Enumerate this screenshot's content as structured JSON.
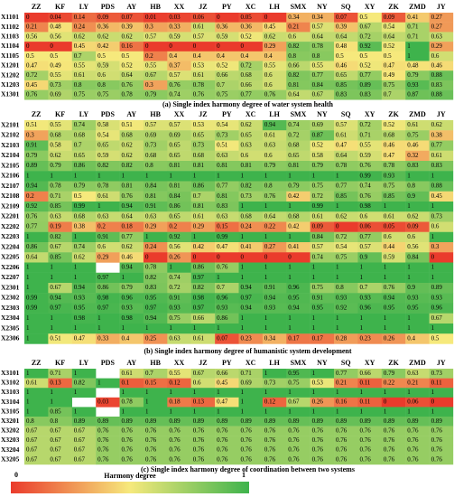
{
  "chart_data": [
    {
      "type": "heatmap",
      "title": "(a) Single index harmony degree of water system health",
      "categories": [
        "ZZ",
        "KF",
        "LY",
        "PDS",
        "AY",
        "HB",
        "XX",
        "JZ",
        "PY",
        "XC",
        "LH",
        "SMX",
        "NY",
        "SQ",
        "XY",
        "ZK",
        "ZMD",
        "JY"
      ],
      "rows": [
        "X1101",
        "X1102",
        "X1103",
        "X1104",
        "X1105",
        "X1201",
        "X1202",
        "X1203",
        "X1301"
      ],
      "values": [
        [
          0,
          0.04,
          0.14,
          0.09,
          0.07,
          0.01,
          0.03,
          0.06,
          0,
          0.05,
          0,
          0.34,
          0.34,
          0.07,
          0.5,
          0.09,
          0.41,
          0.27
        ],
        [
          0.21,
          0.48,
          0.24,
          0.36,
          0.39,
          0.3,
          0.33,
          0.61,
          0.36,
          0.36,
          0.45,
          0.21,
          0.57,
          0.39,
          0.67,
          0.54,
          0.71,
          0.27
        ],
        [
          0.56,
          0.56,
          0.62,
          0.62,
          0.62,
          0.57,
          0.59,
          0.57,
          0.59,
          0.52,
          0.62,
          0.6,
          0.64,
          0.64,
          0.72,
          0.64,
          0.71,
          0.63
        ],
        [
          0,
          0,
          0.45,
          0.42,
          0.16,
          0,
          0,
          0,
          0,
          0,
          0.29,
          0.82,
          0.78,
          0.48,
          0.92,
          0.52,
          1,
          0.29
        ],
        [
          0.5,
          0.5,
          0.7,
          0.5,
          0.5,
          0.2,
          0.4,
          0.4,
          0.4,
          0.4,
          0.4,
          0.8,
          0.8,
          0.5,
          0.5,
          0.5,
          1,
          0.6
        ],
        [
          0.47,
          0.49,
          0.55,
          0.59,
          0.52,
          0.55,
          0.37,
          0.53,
          0.52,
          0.72,
          0.55,
          0.66,
          0.55,
          0.46,
          0.52,
          0.47,
          0.48,
          0.46
        ],
        [
          0.72,
          0.55,
          0.61,
          0.6,
          0.64,
          0.67,
          0.57,
          0.61,
          0.66,
          0.68,
          0.6,
          0.82,
          0.77,
          0.65,
          0.77,
          0.49,
          0.79,
          0.88
        ],
        [
          0.45,
          0.73,
          0.8,
          0.8,
          0.76,
          0.3,
          0.76,
          0.78,
          0.7,
          0.66,
          0.6,
          0.81,
          0.84,
          0.85,
          0.89,
          0.75,
          0.93,
          0.83
        ],
        [
          0.76,
          0.69,
          0.75,
          0.75,
          0.78,
          0.79,
          0.74,
          0.76,
          0.75,
          0.77,
          0.76,
          0.64,
          0.67,
          0.83,
          0.83,
          0.7,
          0.87,
          0.88
        ]
      ]
    },
    {
      "type": "heatmap",
      "title": "(b) Single index harmony degree of humanistic system development",
      "categories": [
        "ZZ",
        "KF",
        "LY",
        "PDS",
        "AY",
        "HB",
        "XX",
        "JZ",
        "PY",
        "XC",
        "LH",
        "SMX",
        "NY",
        "SQ",
        "XY",
        "ZK",
        "ZMD",
        "JY"
      ],
      "rows": [
        "X2101",
        "X2102",
        "X2103",
        "X2104",
        "X2105",
        "X2106",
        "X2107",
        "X2108",
        "X2109",
        "X2201",
        "X2202",
        "X2203",
        "X2204",
        "X2205",
        "X2206",
        "X2207",
        "X2301",
        "X2302",
        "X2303",
        "X2304",
        "X2305",
        "X2306"
      ],
      "values": [
        [
          0.51,
          0.55,
          0.74,
          0.58,
          0.51,
          0.57,
          0.57,
          0.53,
          0.54,
          0.62,
          0.94,
          0.74,
          0.69,
          0.57,
          0.72,
          0.52,
          0.61,
          0.62
        ],
        [
          0.3,
          0.68,
          0.68,
          0.54,
          0.68,
          0.69,
          0.69,
          0.65,
          0.73,
          0.65,
          0.61,
          0.72,
          0.87,
          0.61,
          0.71,
          0.68,
          0.75,
          0.38
        ],
        [
          0.91,
          0.58,
          0.7,
          0.65,
          0.62,
          0.73,
          0.65,
          0.73,
          0.51,
          0.63,
          0.63,
          0.68,
          0.52,
          0.47,
          0.55,
          0.46,
          0.46,
          0.77
        ],
        [
          0.79,
          0.62,
          0.65,
          0.59,
          0.62,
          0.68,
          0.65,
          0.68,
          0.63,
          0.6,
          0.6,
          0.65,
          0.58,
          0.64,
          0.59,
          0.47,
          0.32,
          0.61
        ],
        [
          0.89,
          0.79,
          0.86,
          0.82,
          0.82,
          0.8,
          0.81,
          0.81,
          0.81,
          0.81,
          0.79,
          0.81,
          0.79,
          0.78,
          0.76,
          0.78,
          0.83,
          0.83
        ],
        [
          1,
          1,
          1,
          1,
          1,
          1,
          1,
          1,
          1,
          1,
          1,
          1,
          1,
          1,
          0.99,
          0.93,
          1,
          1
        ],
        [
          0.94,
          0.78,
          0.79,
          0.78,
          0.81,
          0.84,
          0.81,
          0.86,
          0.77,
          0.82,
          0.8,
          0.79,
          0.75,
          0.77,
          0.74,
          0.75,
          0.8,
          0.88
        ],
        [
          0.2,
          0.71,
          0.5,
          0.61,
          0.76,
          0.81,
          0.84,
          0.7,
          0.81,
          0.73,
          0.76,
          0.42,
          0.72,
          0.85,
          0.76,
          0.85,
          0.9,
          0.45
        ],
        [
          0.92,
          0.85,
          0.99,
          1,
          0.94,
          0.91,
          0.86,
          0.81,
          0.83,
          1,
          1,
          1,
          0.99,
          1,
          0.98,
          1,
          1,
          1
        ],
        [
          0.76,
          0.63,
          0.68,
          0.63,
          0.64,
          0.63,
          0.65,
          0.61,
          0.63,
          0.68,
          0.64,
          0.68,
          0.61,
          0.62,
          0.6,
          0.61,
          0.62,
          0.73
        ],
        [
          0.77,
          0.19,
          0.38,
          0.2,
          0.18,
          0.29,
          0.2,
          0.29,
          0.15,
          0.24,
          0.22,
          0.42,
          0.09,
          0,
          0.06,
          0.05,
          0.09,
          0.6
        ],
        [
          1,
          0.82,
          1,
          0.91,
          0.77,
          1,
          0.92,
          1,
          0.99,
          1,
          1,
          1,
          0.84,
          0.72,
          0.77,
          0.6,
          0.6,
          1
        ],
        [
          0.86,
          0.67,
          0.74,
          0.6,
          0.62,
          0.24,
          0.56,
          0.42,
          0.47,
          0.41,
          0.27,
          0.41,
          0.57,
          0.54,
          0.57,
          0.44,
          0.56,
          0.3
        ],
        [
          0.64,
          0.85,
          0.62,
          0.29,
          0.46,
          0,
          0.26,
          0,
          0,
          0,
          0,
          0,
          0.74,
          0.75,
          0.9,
          0.59,
          0.84,
          0
        ],
        [
          1,
          1,
          1,
          null,
          0.94,
          0.78,
          1,
          0.86,
          0.76,
          1,
          1,
          1,
          1,
          1,
          1,
          1,
          1,
          1
        ],
        [
          1,
          1,
          1,
          0.97,
          1,
          0.82,
          0.74,
          0.97,
          1,
          1,
          1,
          1,
          1,
          1,
          1,
          1,
          1,
          1
        ],
        [
          1,
          0.67,
          0.94,
          0.86,
          0.79,
          0.83,
          0.72,
          0.82,
          0.7,
          0.94,
          0.91,
          0.96,
          0.75,
          0.8,
          0.7,
          0.76,
          0.9,
          0.89
        ],
        [
          0.99,
          0.94,
          0.93,
          0.98,
          0.96,
          0.95,
          0.91,
          0.98,
          0.96,
          0.97,
          0.94,
          0.95,
          0.91,
          0.93,
          0.93,
          0.94,
          0.93,
          0.93
        ],
        [
          0.99,
          0.97,
          0.95,
          0.97,
          0.93,
          0.97,
          0.93,
          0.97,
          0.93,
          0.94,
          0.93,
          0.94,
          0.95,
          0.92,
          0.96,
          0.95,
          0.95,
          0.96
        ],
        [
          1,
          1,
          0.98,
          1,
          0.98,
          0.94,
          0.75,
          0.66,
          0.86,
          1,
          1,
          1,
          1,
          1,
          1,
          1,
          1,
          0.67
        ],
        [
          1,
          1,
          1,
          1,
          1,
          1,
          1,
          1,
          1,
          1,
          1,
          1,
          1,
          1,
          1,
          1,
          1,
          1
        ],
        [
          1,
          0.51,
          0.47,
          0.33,
          0.4,
          0.25,
          0.63,
          0.61,
          0.07,
          0.23,
          0.34,
          0.17,
          0.17,
          0.28,
          0.23,
          0.26,
          0.4,
          0.5
        ]
      ]
    },
    {
      "type": "heatmap",
      "title": "(c) Single index harmony degree of coordination between two systems",
      "categories": [
        "ZZ",
        "KF",
        "LY",
        "PDS",
        "AY",
        "HB",
        "XX",
        "JZ",
        "PY",
        "XC",
        "LH",
        "SMX",
        "NY",
        "SQ",
        "XY",
        "ZK",
        "ZMD",
        "JY"
      ],
      "rows": [
        "X3101",
        "X3102",
        "X3103",
        "X3104",
        "X3105",
        "X3201",
        "X3202",
        "X3203",
        "X3204",
        "X3205"
      ],
      "values": [
        [
          1,
          0.71,
          1,
          null,
          0.61,
          0.7,
          0.55,
          0.67,
          0.66,
          0.71,
          1,
          0.95,
          1,
          0.77,
          0.66,
          0.79,
          0.63,
          0.73
        ],
        [
          0.61,
          0.13,
          0.82,
          1,
          0.1,
          0.15,
          0.12,
          0.6,
          0.45,
          0.69,
          0.73,
          0.75,
          0.53,
          0.21,
          0.11,
          0.22,
          0.21,
          0.11
        ],
        [
          1,
          1,
          1,
          null,
          1,
          1,
          1,
          1,
          1,
          1,
          1,
          1,
          1,
          1,
          1,
          1,
          1,
          1
        ],
        [
          1,
          1,
          null,
          0.03,
          0.78,
          1,
          0.18,
          0.13,
          0.47,
          1,
          0.12,
          0.67,
          0.26,
          0.16,
          0.11,
          0,
          0.06,
          0
        ],
        [
          1,
          0.85,
          1,
          null,
          1,
          1,
          1,
          1,
          1,
          1,
          1,
          1,
          1,
          1,
          1,
          1,
          1,
          1
        ],
        [
          0.8,
          0.8,
          0.89,
          0.89,
          0.89,
          0.89,
          0.89,
          0.89,
          0.89,
          0.89,
          0.89,
          0.89,
          0.89,
          0.89,
          0.89,
          0.89,
          0.89,
          0.89
        ],
        [
          0.67,
          0.67,
          0.67,
          0.76,
          0.76,
          0.76,
          0.76,
          0.76,
          0.76,
          0.76,
          0.76,
          0.76,
          0.76,
          0.76,
          0.76,
          0.76,
          0.76,
          0.76
        ],
        [
          0.67,
          0.67,
          0.67,
          0.76,
          0.76,
          0.76,
          0.76,
          0.76,
          0.76,
          0.76,
          0.76,
          0.76,
          0.76,
          0.76,
          0.76,
          0.76,
          0.76,
          0.76
        ],
        [
          0.67,
          0.67,
          0.67,
          0.76,
          0.76,
          0.76,
          0.76,
          0.76,
          0.76,
          0.76,
          0.76,
          0.76,
          0.76,
          0.76,
          0.76,
          0.76,
          0.76,
          0.76
        ],
        [
          0.67,
          0.67,
          0.67,
          0.76,
          0.76,
          0.76,
          0.76,
          0.76,
          0.76,
          0.76,
          0.76,
          0.76,
          0.76,
          0.76,
          0.76,
          0.76,
          0.76,
          0.76
        ]
      ]
    }
  ],
  "colorbar": {
    "label": "Harmony degree",
    "ticks": [
      0,
      1
    ],
    "colors": [
      "#ea3b2c",
      "#f6e97c",
      "#3eb34c"
    ]
  }
}
